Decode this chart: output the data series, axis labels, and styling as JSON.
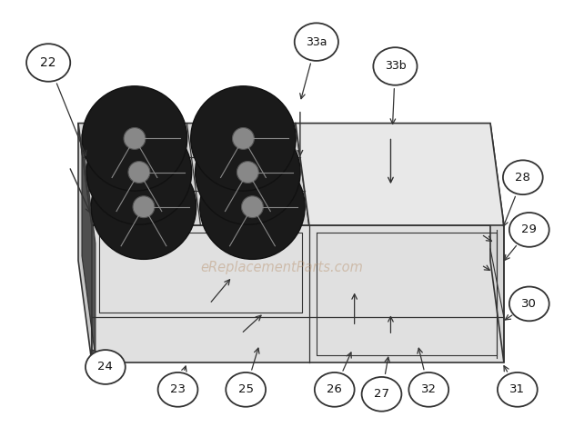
{
  "bg_color": "#ffffff",
  "watermark_text": "eReplacementParts.com",
  "watermark_color": "#b8906a",
  "watermark_alpha": 0.45,
  "line_color": "#333333",
  "fan_color": "#1a1a1a",
  "fan_edge": "#111111",
  "hub_color": "#555555",
  "face_colors": {
    "top_fan": "#d8d8d8",
    "top_right": "#e8e8e8",
    "front_face": "#e0e0e0",
    "left_face": "#c8c8c8",
    "right_face": "#d8d8d8",
    "filter": "#3a3a3a"
  }
}
